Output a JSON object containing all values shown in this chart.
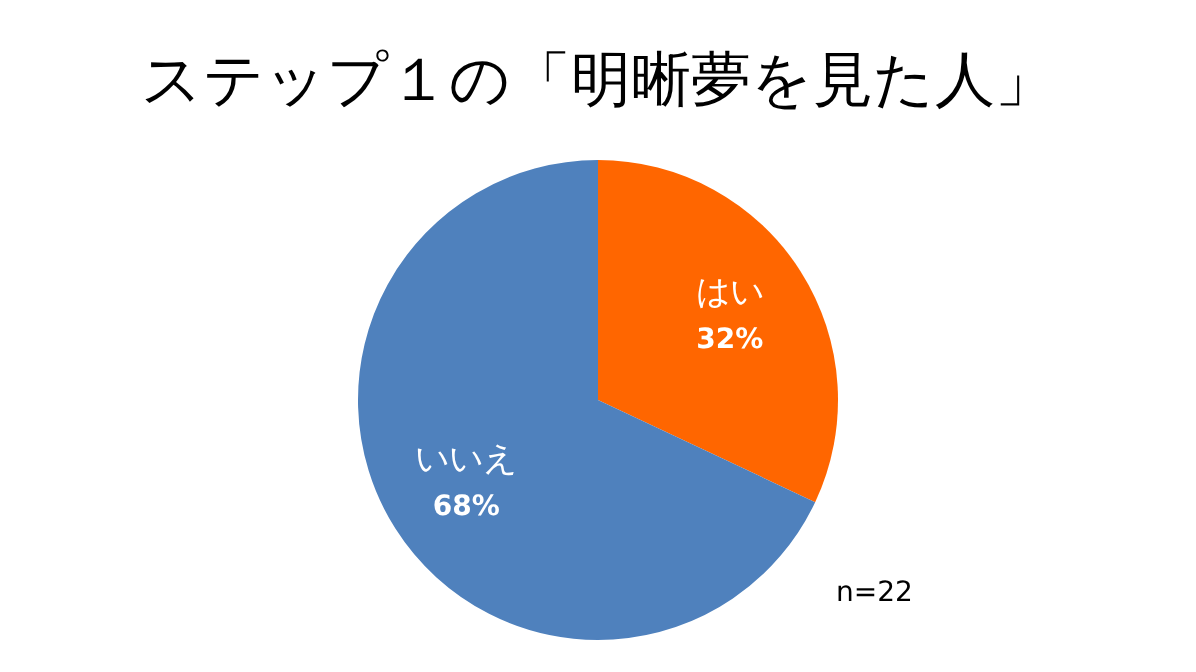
{
  "chart_data": {
    "type": "pie",
    "title": "ステップ１の「明晰夢を見た人」",
    "categories": [
      "はい",
      "いいえ"
    ],
    "values": [
      32,
      68
    ],
    "colors": [
      "#ff6600",
      "#4f81bd"
    ],
    "value_labels": [
      "32%",
      "68%"
    ],
    "legend": false,
    "annotations": [
      "n=22"
    ]
  }
}
